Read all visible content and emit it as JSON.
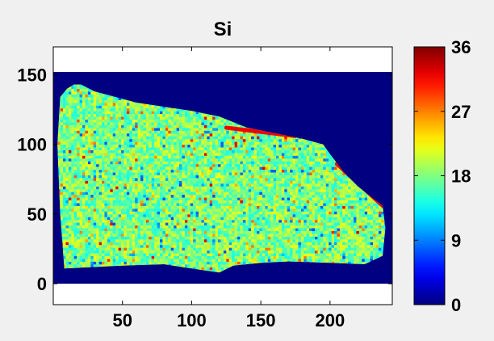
{
  "chart_data": {
    "type": "heatmap",
    "title": "Si",
    "xlabel": "",
    "ylabel": "",
    "xlim": [
      0,
      245
    ],
    "ylim": [
      -15,
      170
    ],
    "image_y_range": [
      0,
      152
    ],
    "x_ticks": [
      50,
      100,
      150,
      200
    ],
    "y_ticks": [
      0,
      50,
      100,
      150
    ],
    "colorbar": {
      "min": 0,
      "max": 36,
      "ticks": [
        0,
        9,
        18,
        27,
        36
      ],
      "colormap": "jet"
    },
    "background_value": 0,
    "sample_region": {
      "typical_value_range": [
        14,
        22
      ],
      "outline": [
        [
          5,
          134
        ],
        [
          10,
          140
        ],
        [
          15,
          143
        ],
        [
          20,
          143
        ],
        [
          30,
          138
        ],
        [
          60,
          130
        ],
        [
          100,
          124
        ],
        [
          120,
          120
        ],
        [
          140,
          112
        ],
        [
          160,
          108
        ],
        [
          180,
          104
        ],
        [
          195,
          100
        ],
        [
          200,
          93
        ],
        [
          210,
          80
        ],
        [
          220,
          70
        ],
        [
          230,
          62
        ],
        [
          238,
          56
        ],
        [
          240,
          40
        ],
        [
          238,
          20
        ],
        [
          225,
          14
        ],
        [
          200,
          15
        ],
        [
          170,
          16
        ],
        [
          150,
          15
        ],
        [
          130,
          13
        ],
        [
          120,
          8
        ],
        [
          100,
          11
        ],
        [
          80,
          14
        ],
        [
          50,
          13
        ],
        [
          30,
          12
        ],
        [
          8,
          11
        ],
        [
          5,
          50
        ],
        [
          3,
          100
        ]
      ],
      "high_value_edge": {
        "approx_value": 32,
        "segments": [
          [
            [
              125,
              112
            ],
            [
              175,
              106
            ]
          ],
          [
            [
              205,
              86
            ],
            [
              238,
              56
            ]
          ]
        ]
      }
    }
  }
}
